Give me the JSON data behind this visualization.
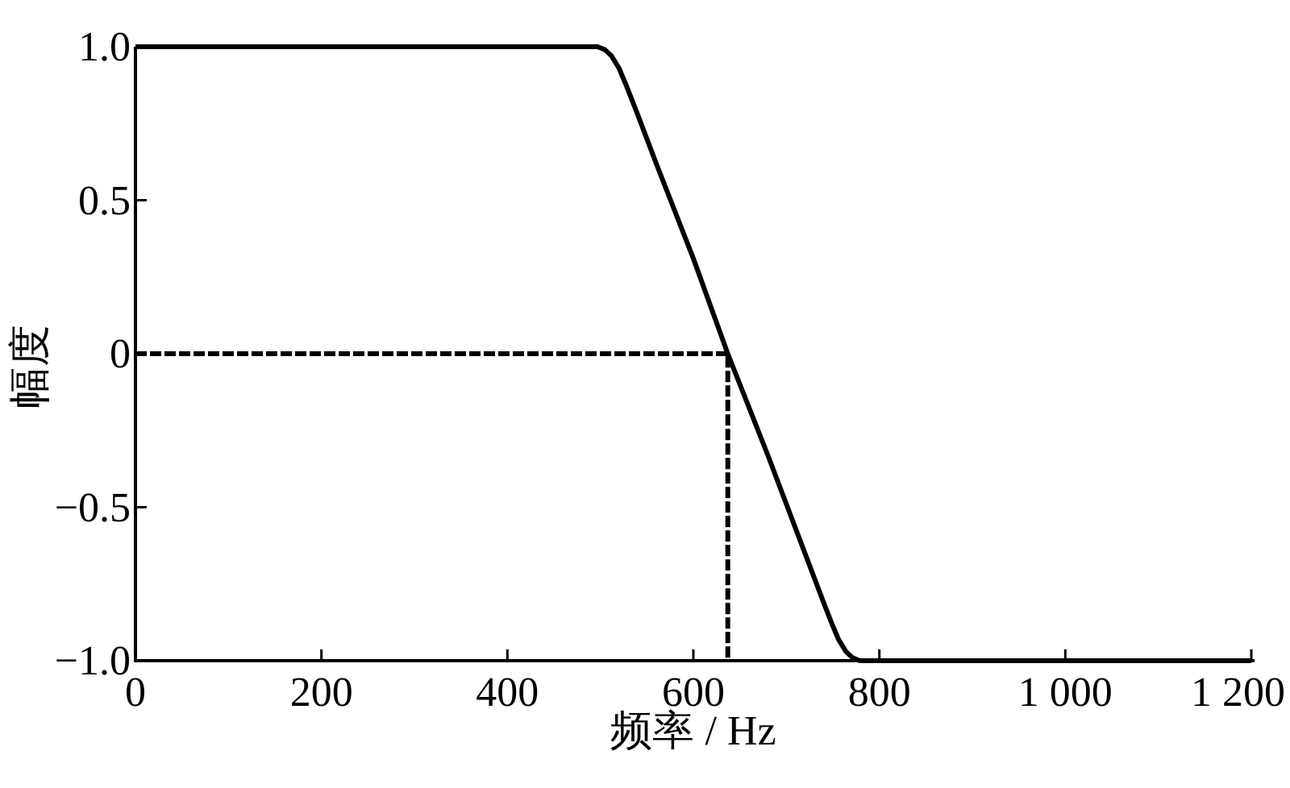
{
  "chart_data": {
    "type": "line",
    "xlabel": "频率 / Hz",
    "ylabel": "幅度",
    "xlim": [
      0,
      1200
    ],
    "ylim": [
      -1,
      1
    ],
    "xticks": [
      0,
      200,
      400,
      600,
      800,
      {
        "value": 1000,
        "label": "1 000"
      },
      {
        "value": 1200,
        "label": "1 200"
      }
    ],
    "yticks": [
      {
        "value": -1,
        "label": "−1.0"
      },
      {
        "value": -0.5,
        "label": "−0.5"
      },
      0,
      0.5,
      {
        "value": 1,
        "label": "1.0"
      }
    ],
    "series": [
      {
        "color": "#000000",
        "line_style": "solid",
        "x": [
          0,
          497,
          505,
          512,
          520,
          527,
          540,
          560,
          600,
          637,
          680,
          720,
          740,
          749,
          756,
          764,
          771,
          779,
          1200
        ],
        "values": [
          1,
          1,
          0.99,
          0.97,
          0.93,
          0.88,
          0.78,
          0.62,
          0.31,
          0,
          -0.33,
          -0.65,
          -0.81,
          -0.88,
          -0.93,
          -0.97,
          -0.99,
          -1,
          -1
        ]
      },
      {
        "color": "#000000",
        "line_style": "dashed",
        "x": [
          0,
          637,
          637
        ],
        "values": [
          0,
          0,
          -1
        ]
      }
    ]
  }
}
